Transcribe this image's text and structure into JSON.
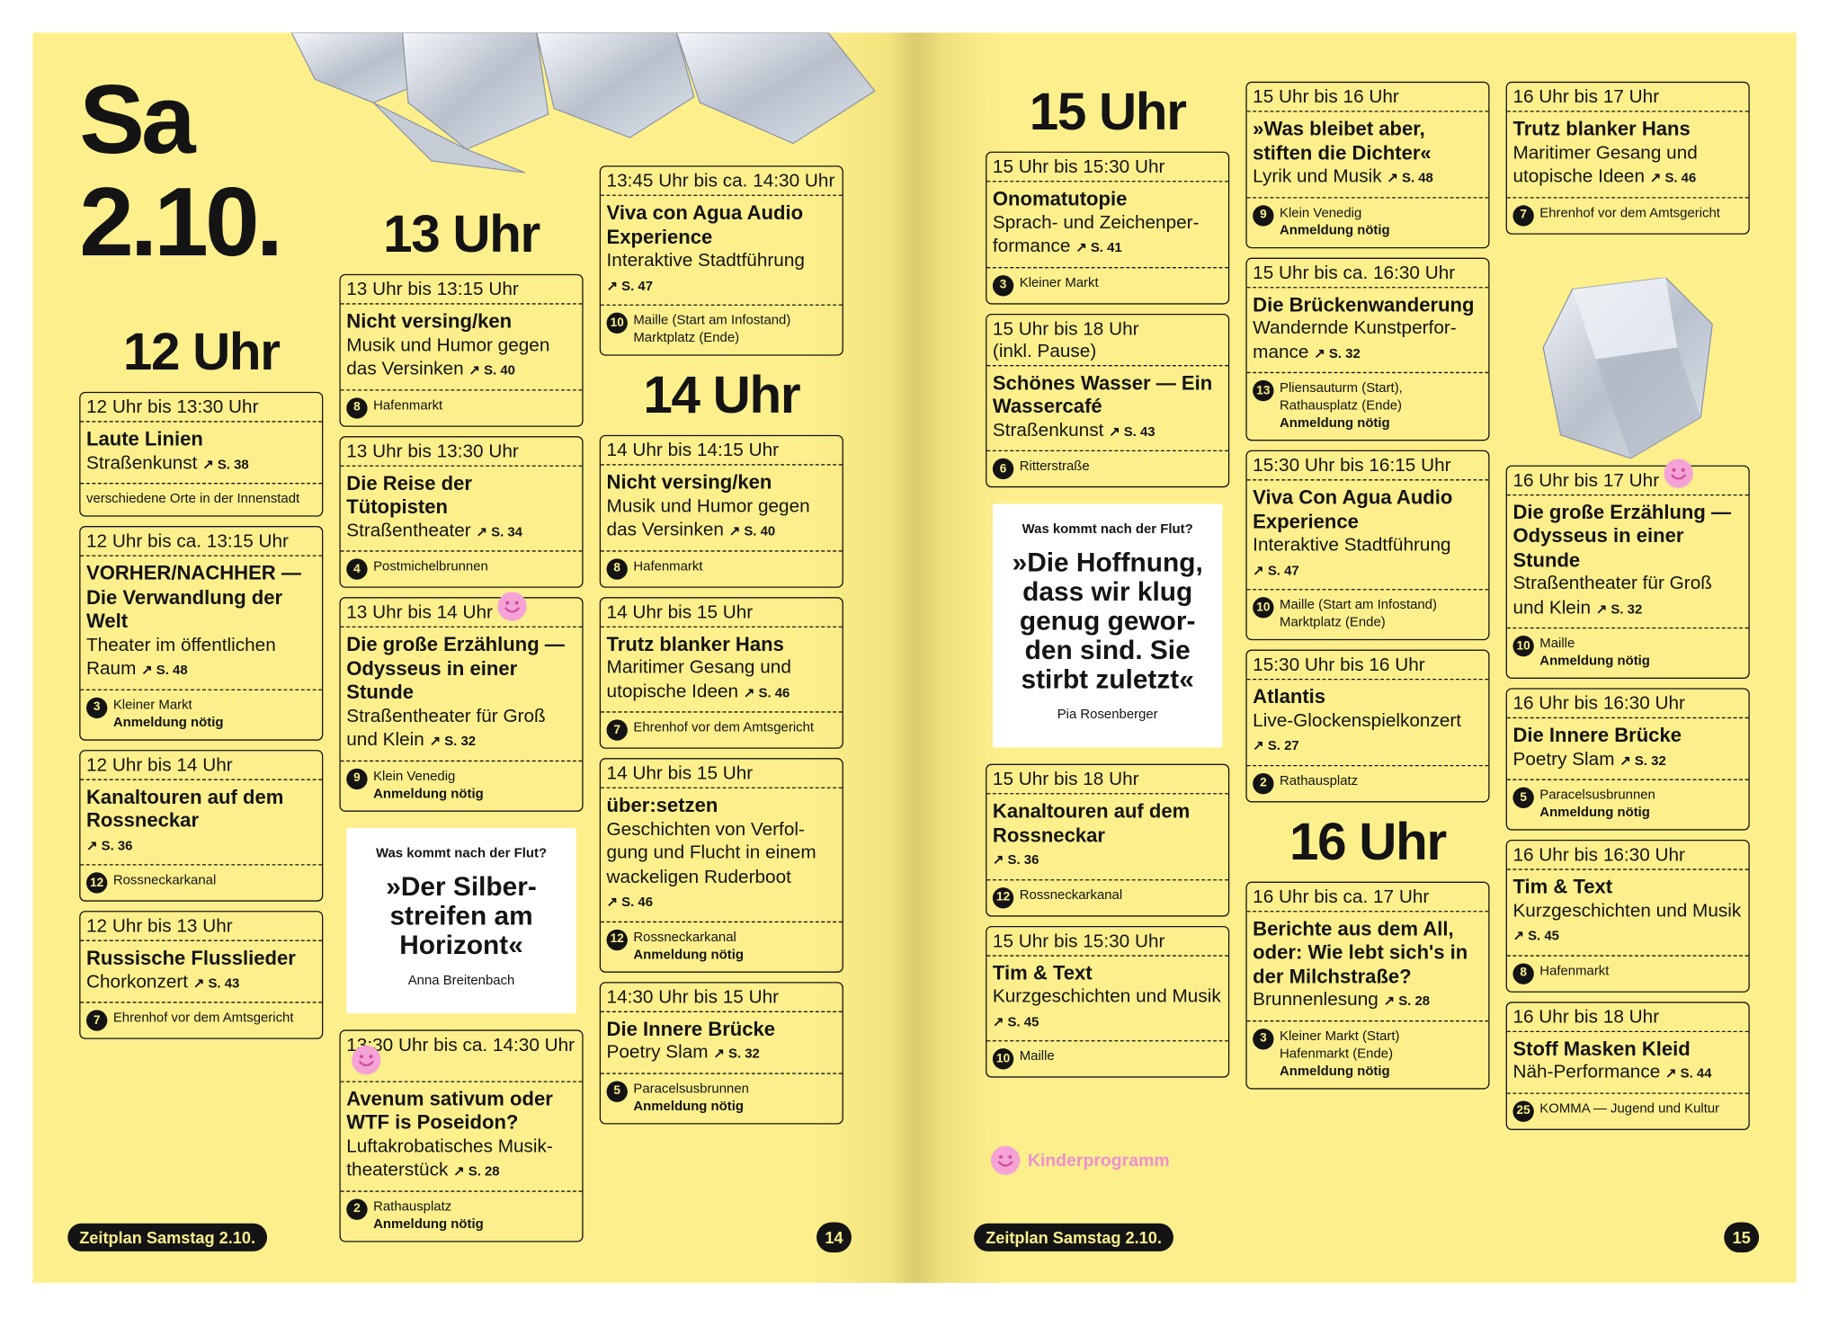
{
  "pages": [
    {
      "day": [
        "Sa",
        "2.10."
      ],
      "columns": [
        [
          {
            "hour": "12 Uhr"
          },
          {
            "time": "12 Uhr bis 13:30 Uhr",
            "title": "Laute Linien",
            "desc": "Straßenkunst",
            "ref": "↗ S. 38",
            "venue": "verschiedene Orte in der Innenstadt"
          },
          {
            "time": "12 Uhr bis ca. 13:15 Uhr",
            "title": "VORHER/NACHHER — Die Verwandlung der Welt",
            "desc": "Theater im öffentlichen Raum",
            "ref": "↗ S. 48",
            "num": "3",
            "venue": "Kleiner Markt",
            "note": "Anmeldung nötig"
          },
          {
            "time": "12 Uhr bis 14 Uhr",
            "title": "Kanaltouren auf dem Rossneckar",
            "ref": "↗ S. 36",
            "num": "12",
            "venue": "Rossneckarkanal"
          },
          {
            "time": "12 Uhr bis 13 Uhr",
            "title": "Russische Flusslieder",
            "desc": "Chorkonzert",
            "ref": "↗ S. 43",
            "num": "7",
            "venue": "Ehrenhof vor dem Amtsgericht"
          }
        ],
        [
          {
            "hour": "13 Uhr"
          },
          {
            "time": "13 Uhr bis 13:15 Uhr",
            "title": "Nicht versing/ken",
            "desc": "Musik und Humor gegen das Versinken",
            "ref": "↗ S. 40",
            "num": "8",
            "venue": "Hafenmarkt"
          },
          {
            "time": "13 Uhr bis 13:30 Uhr",
            "title": "Die Reise der Tütopisten",
            "desc": "Straßentheater",
            "ref": "↗ S. 34",
            "num": "4",
            "venue": "Postmichelbrunnen"
          },
          {
            "time": "13 Uhr bis 14 Uhr",
            "kids": true,
            "title": "Die große Erzählung — Odysseus in einer Stunde",
            "desc": "Straßentheater für Groß und Klein",
            "ref": "↗ S. 32",
            "num": "9",
            "venue": "Klein Venedig",
            "note": "Anmeldung nötig"
          },
          {
            "question": "Was kommt nach der Flut?",
            "quote": "»Der Silber-\nstreifen am\nHorizont«",
            "author": "Anna Breitenbach"
          },
          {
            "time": "13:30 Uhr bis ca. 14:30 Uhr",
            "kids": true,
            "title": "Avenum sativum oder WTF is Poseidon?",
            "desc": "Luftakrobatisches Musik­theaterstück",
            "ref": "↗ S. 28",
            "num": "2",
            "venue": "Rathausplatz",
            "note": "Anmeldung nötig"
          }
        ],
        [
          {
            "time": "13:45 Uhr bis ca. 14:30 Uhr",
            "title": "Viva con Agua Audio Experience",
            "desc": "Interaktive Stadtführung",
            "ref": "↗ S. 47",
            "num": "10",
            "venue": "Maille (Start am Infostand)\nMarktplatz (Ende)"
          },
          {
            "hour": "14 Uhr"
          },
          {
            "time": "14 Uhr bis 14:15 Uhr",
            "title": "Nicht versing/ken",
            "desc": "Musik und Humor gegen das Versinken",
            "ref": "↗ S. 40",
            "num": "8",
            "venue": "Hafenmarkt"
          },
          {
            "time": "14 Uhr bis 15 Uhr",
            "title": "Trutz blanker Hans",
            "desc": "Maritimer Gesang und utopische Ideen",
            "ref": "↗ S. 46",
            "num": "7",
            "venue": "Ehrenhof vor dem Amtsgericht"
          },
          {
            "time": "14 Uhr bis 15 Uhr",
            "title": "über:setzen",
            "desc": "Geschichten von Verfol­gung und Flucht in einem wackeligen Ruderboot",
            "ref": "↗ S. 46",
            "num": "12",
            "venue": "Rossneckarkanal",
            "note": "Anmeldung nötig"
          },
          {
            "time": "14:30 Uhr bis 15 Uhr",
            "title": "Die Innere Brücke",
            "desc": "Poetry Slam",
            "ref": "↗ S. 32",
            "num": "5",
            "venue": "Paracelsusbrunnen",
            "note": "Anmeldung nötig"
          }
        ]
      ],
      "footer": {
        "label": "Zeitplan Samstag 2.10.",
        "page": "14"
      }
    },
    {
      "columns": [
        [
          {
            "hour": "15 Uhr"
          },
          {
            "time": "15 Uhr bis 15:30 Uhr",
            "title": "Onomatutopie",
            "desc": "Sprach- und Zeichenper­formance",
            "ref": "↗ S. 41",
            "num": "3",
            "venue": "Kleiner Markt"
          },
          {
            "time": "15 Uhr bis 18 Uhr\n(inkl. Pause)",
            "title": "Schönes Wasser — Ein Wassercafé",
            "desc": "Straßenkunst",
            "ref": "↗ S. 43",
            "num": "6",
            "venue": "Ritterstraße"
          },
          {
            "question": "Was kommt nach der Flut?",
            "quote": "»Die Hoffnung, dass wir klug genug gewor­den sind. Sie stirbt zuletzt«",
            "author": "Pia Rosenberger"
          },
          {
            "time": "15 Uhr bis 18 Uhr",
            "title": "Kanaltouren auf dem Rossneckar",
            "ref": "↗ S. 36",
            "num": "12",
            "venue": "Rossneckarkanal"
          },
          {
            "time": "15 Uhr bis 15:30 Uhr",
            "title": "Tim & Text",
            "desc": "Kurzgeschichten und Musik",
            "ref": "↗ S. 45",
            "num": "10",
            "venue": "Maille"
          }
        ],
        [
          {
            "time": "15 Uhr bis 16 Uhr",
            "title": "»Was bleibet aber, stiften die Dichter«",
            "desc": "Lyrik und Musik",
            "ref": "↗ S. 48",
            "num": "9",
            "venue": "Klein Venedig",
            "note": "Anmeldung nötig"
          },
          {
            "time": "15 Uhr bis ca. 16:30 Uhr",
            "title": "Die Brückenwanderung",
            "desc": "Wandernde Kunstperfor­mance",
            "ref": "↗ S. 32",
            "num": "13",
            "venue": "Pliensauturm (Start),\nRathausplatz (Ende)",
            "note": "Anmeldung nötig"
          },
          {
            "time": "15:30 Uhr bis 16:15 Uhr",
            "title": "Viva Con Agua Audio Experience",
            "desc": "Interaktive Stadtführung",
            "ref": "↗ S. 47",
            "num": "10",
            "venue": "Maille (Start am Infostand)\nMarktplatz (Ende)"
          },
          {
            "time": "15:30 Uhr bis 16 Uhr",
            "title": "Atlantis",
            "desc": "Live-Glockenspielkonzert",
            "ref": "↗ S. 27",
            "num": "2",
            "venue": "Rathausplatz"
          },
          {
            "hour": "16 Uhr"
          },
          {
            "time": "16 Uhr bis ca. 17 Uhr",
            "title": "Berichte aus dem All, oder: Wie lebt sich's in der Milchstraße?",
            "desc": "Brunnenlesung",
            "ref": "↗ S. 28",
            "num": "3",
            "venue": "Kleiner Markt (Start)\nHafenmarkt (Ende)",
            "note": "Anmeldung nötig"
          }
        ],
        [
          {
            "time": "16 Uhr bis 17 Uhr",
            "title": "Trutz blanker Hans",
            "desc": "Maritimer Gesang und utopische Ideen",
            "ref": "↗ S. 46",
            "num": "7",
            "venue": "Ehrenhof vor dem Amtsgericht"
          },
          {
            "time": "16 Uhr bis 17 Uhr",
            "kids": true,
            "title": "Die große Erzählung — Odysseus in einer Stunde",
            "desc": "Straßentheater für Groß und Klein",
            "ref": "↗ S. 32",
            "num": "10",
            "venue": "Maille",
            "note": "Anmeldung nötig"
          },
          {
            "time": "16 Uhr bis 16:30 Uhr",
            "title": "Die Innere Brücke",
            "desc": "Poetry Slam",
            "ref": "↗ S. 32",
            "num": "5",
            "venue": "Paracelsusbrunnen",
            "note": "Anmeldung nötig"
          },
          {
            "time": "16 Uhr bis 16:30 Uhr",
            "title": "Tim & Text",
            "desc": "Kurzgeschichten und Musik",
            "ref": "↗ S. 45",
            "num": "8",
            "venue": "Hafenmarkt"
          },
          {
            "time": "16 Uhr bis 18 Uhr",
            "title": "Stoff Masken Kleid",
            "desc": "Näh-Performance",
            "ref": "↗ S. 44",
            "num": "25",
            "venue": "KOMMA — Jugend und Kultur"
          }
        ]
      ],
      "legend": "Kinderprogramm",
      "footer": {
        "label": "Zeitplan Samstag 2.10.",
        "page": "15"
      }
    }
  ]
}
